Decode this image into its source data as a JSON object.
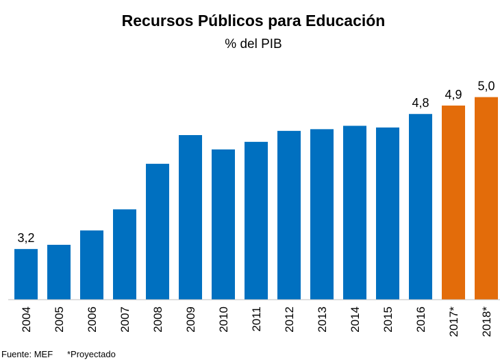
{
  "chart_data": {
    "type": "bar",
    "title": "Recursos Públicos para Educación",
    "subtitle": "% del PIB",
    "categories": [
      "2004",
      "2005",
      "2006",
      "2007",
      "2008",
      "2009",
      "2010",
      "2011",
      "2012",
      "2013",
      "2014",
      "2015",
      "2016",
      "2017*",
      "2018*"
    ],
    "values": [
      3.2,
      3.25,
      3.42,
      3.67,
      4.21,
      4.55,
      4.38,
      4.47,
      4.6,
      4.62,
      4.66,
      4.64,
      4.8,
      4.9,
      5.0
    ],
    "value_labels": [
      "3,2",
      null,
      null,
      null,
      null,
      null,
      null,
      null,
      null,
      null,
      null,
      null,
      "4,8",
      "4,9",
      "5,0"
    ],
    "colors": [
      "#0070c0",
      "#0070c0",
      "#0070c0",
      "#0070c0",
      "#0070c0",
      "#0070c0",
      "#0070c0",
      "#0070c0",
      "#0070c0",
      "#0070c0",
      "#0070c0",
      "#0070c0",
      "#0070c0",
      "#e36c0a",
      "#e36c0a"
    ],
    "ylim": [
      2.6,
      5.2
    ],
    "source": "Fuente: MEF",
    "note": "*Proyectado"
  }
}
